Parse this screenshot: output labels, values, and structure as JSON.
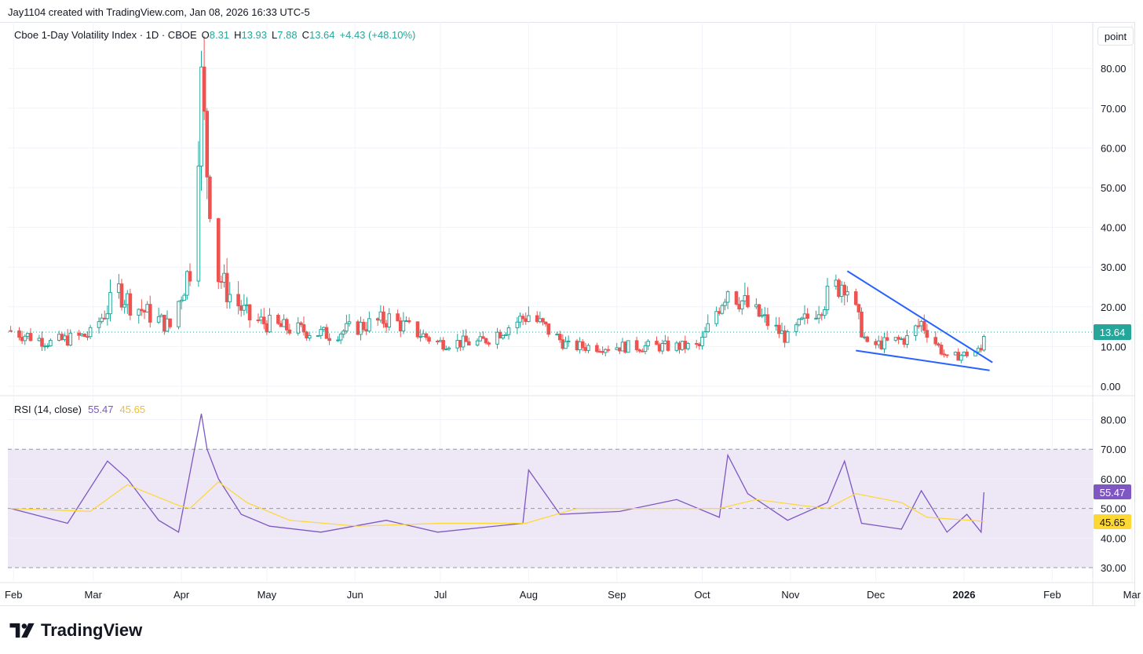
{
  "caption": "Jay1104 created with TradingView.com, Jan 08, 2026 16:33 UTC-5",
  "legend": {
    "symbol": "Cboe 1-Day Volatility Index · 1D · CBOE",
    "o_label": "O",
    "o": "8.31",
    "h_label": "H",
    "h": "13.93",
    "l_label": "L",
    "l": "7.88",
    "c_label": "C",
    "c": "13.64",
    "change": "+4.43 (+48.10%)"
  },
  "rsi_legend": {
    "label": "RSI (14, close)",
    "rsi": "55.47",
    "ma": "45.65"
  },
  "scale_button": "point",
  "footer_brand": "TradingView",
  "colors": {
    "up": "#26a69a",
    "down": "#ef5350",
    "rsi": "#7e57c2",
    "rsi_ma": "#fdd835",
    "trendline": "#2962ff",
    "band": "#ede7f6"
  },
  "chart_data": [
    {
      "type": "candlestick",
      "title": "Cboe 1-Day Volatility Index · 1D · CBOE",
      "xlabel": "",
      "ylabel": "",
      "x_ticks": [
        "Feb",
        "Mar",
        "Apr",
        "May",
        "Jun",
        "Jul",
        "Aug",
        "Sep",
        "Oct",
        "Nov",
        "Dec",
        "2026",
        "Feb",
        "Mar"
      ],
      "y_ticks": [
        "0.00",
        "10.00",
        "20.00",
        "30.00",
        "40.00",
        "50.00",
        "60.00",
        "70.00",
        "80.00"
      ],
      "ylim": [
        0,
        88
      ],
      "last_price": "13.64",
      "x_start": "2025-01-30",
      "series": [
        {
          "name": "Cboe 1-Day Volatility Index",
          "points": [
            {
              "x": "2025-01-31",
              "y": 14
            },
            {
              "x": "2025-02-14",
              "y": 11
            },
            {
              "x": "2025-02-28",
              "y": 13
            },
            {
              "x": "2025-03-10",
              "y": 24
            },
            {
              "x": "2025-03-14",
              "y": 21
            },
            {
              "x": "2025-03-21",
              "y": 18
            },
            {
              "x": "2025-03-28",
              "y": 15
            },
            {
              "x": "2025-04-04",
              "y": 30
            },
            {
              "x": "2025-04-07",
              "y": 65
            },
            {
              "x": "2025-04-08",
              "y": 75
            },
            {
              "x": "2025-04-10",
              "y": 55
            },
            {
              "x": "2025-04-14",
              "y": 28
            },
            {
              "x": "2025-04-17",
              "y": 24
            },
            {
              "x": "2025-04-25",
              "y": 17
            },
            {
              "x": "2025-05-05",
              "y": 15
            },
            {
              "x": "2025-05-23",
              "y": 13
            },
            {
              "x": "2025-06-13",
              "y": 17
            },
            {
              "x": "2025-06-30",
              "y": 11
            },
            {
              "x": "2025-07-15",
              "y": 11
            },
            {
              "x": "2025-08-01",
              "y": 18
            },
            {
              "x": "2025-08-15",
              "y": 10
            },
            {
              "x": "2025-09-05",
              "y": 10
            },
            {
              "x": "2025-09-30",
              "y": 10
            },
            {
              "x": "2025-10-10",
              "y": 25
            },
            {
              "x": "2025-10-17",
              "y": 20
            },
            {
              "x": "2025-10-31",
              "y": 12
            },
            {
              "x": "2025-11-20",
              "y": 27
            },
            {
              "x": "2025-11-28",
              "y": 10
            },
            {
              "x": "2025-12-12",
              "y": 12
            },
            {
              "x": "2025-12-17",
              "y": 16
            },
            {
              "x": "2025-12-26",
              "y": 7
            },
            {
              "x": "2026-01-07",
              "y": 9
            },
            {
              "x": "2026-01-08",
              "y": 13.64
            }
          ]
        }
      ],
      "annotations": [
        {
          "type": "trendline",
          "from": {
            "x": "2025-11-21",
            "y": 29
          },
          "to": {
            "x": "2026-01-11",
            "y": 6
          }
        },
        {
          "type": "trendline",
          "from": {
            "x": "2025-11-24",
            "y": 9
          },
          "to": {
            "x": "2026-01-10",
            "y": 4
          }
        }
      ]
    },
    {
      "type": "line",
      "title": "RSI (14, close)",
      "xlabel": "",
      "ylabel": "",
      "y_ticks": [
        "30.00",
        "40.00",
        "50.00",
        "60.00",
        "70.00",
        "80.00"
      ],
      "ylim": [
        25,
        85
      ],
      "band": [
        30,
        70
      ],
      "midline": 50,
      "series": [
        {
          "name": "RSI",
          "points": [
            {
              "x": "2025-01-31",
              "y": 50
            },
            {
              "x": "2025-02-20",
              "y": 45
            },
            {
              "x": "2025-03-06",
              "y": 66
            },
            {
              "x": "2025-03-13",
              "y": 60
            },
            {
              "x": "2025-03-24",
              "y": 46
            },
            {
              "x": "2025-03-31",
              "y": 42
            },
            {
              "x": "2025-04-04",
              "y": 62
            },
            {
              "x": "2025-04-08",
              "y": 82
            },
            {
              "x": "2025-04-10",
              "y": 70
            },
            {
              "x": "2025-04-14",
              "y": 60
            },
            {
              "x": "2025-04-22",
              "y": 48
            },
            {
              "x": "2025-05-02",
              "y": 44
            },
            {
              "x": "2025-05-20",
              "y": 42
            },
            {
              "x": "2025-06-12",
              "y": 46
            },
            {
              "x": "2025-06-30",
              "y": 42
            },
            {
              "x": "2025-07-30",
              "y": 45
            },
            {
              "x": "2025-08-01",
              "y": 63
            },
            {
              "x": "2025-08-12",
              "y": 48
            },
            {
              "x": "2025-09-02",
              "y": 49
            },
            {
              "x": "2025-09-22",
              "y": 53
            },
            {
              "x": "2025-10-07",
              "y": 47
            },
            {
              "x": "2025-10-10",
              "y": 68
            },
            {
              "x": "2025-10-17",
              "y": 55
            },
            {
              "x": "2025-10-31",
              "y": 46
            },
            {
              "x": "2025-11-14",
              "y": 52
            },
            {
              "x": "2025-11-20",
              "y": 66
            },
            {
              "x": "2025-11-26",
              "y": 45
            },
            {
              "x": "2025-12-10",
              "y": 43
            },
            {
              "x": "2025-12-17",
              "y": 56
            },
            {
              "x": "2025-12-26",
              "y": 42
            },
            {
              "x": "2026-01-02",
              "y": 48
            },
            {
              "x": "2026-01-07",
              "y": 42
            },
            {
              "x": "2026-01-08",
              "y": 55.47
            }
          ]
        },
        {
          "name": "RSI-based MA",
          "points": [
            {
              "x": "2025-01-31",
              "y": 50
            },
            {
              "x": "2025-02-28",
              "y": 49
            },
            {
              "x": "2025-03-13",
              "y": 58
            },
            {
              "x": "2025-03-31",
              "y": 51
            },
            {
              "x": "2025-04-04",
              "y": 50
            },
            {
              "x": "2025-04-14",
              "y": 59
            },
            {
              "x": "2025-04-24",
              "y": 52
            },
            {
              "x": "2025-05-09",
              "y": 46
            },
            {
              "x": "2025-06-02",
              "y": 44
            },
            {
              "x": "2025-07-01",
              "y": 45
            },
            {
              "x": "2025-07-31",
              "y": 45
            },
            {
              "x": "2025-08-18",
              "y": 50
            },
            {
              "x": "2025-09-15",
              "y": 50
            },
            {
              "x": "2025-10-07",
              "y": 50
            },
            {
              "x": "2025-10-20",
              "y": 53
            },
            {
              "x": "2025-11-05",
              "y": 51
            },
            {
              "x": "2025-11-14",
              "y": 50
            },
            {
              "x": "2025-11-24",
              "y": 55
            },
            {
              "x": "2025-12-10",
              "y": 52
            },
            {
              "x": "2025-12-19",
              "y": 47
            },
            {
              "x": "2026-01-08",
              "y": 45.65
            }
          ]
        }
      ]
    }
  ]
}
